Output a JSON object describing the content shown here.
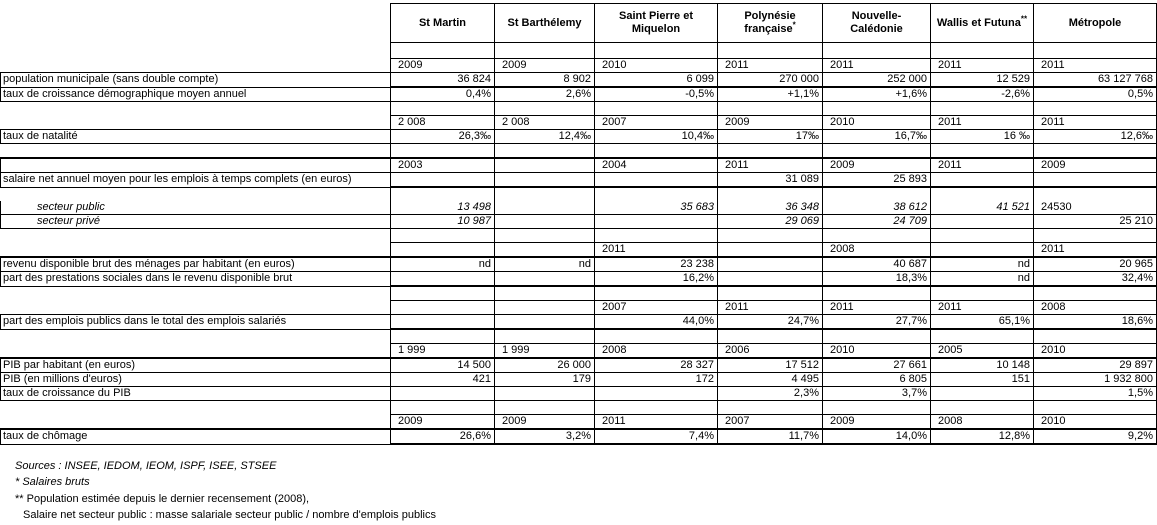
{
  "table": {
    "columns": [
      {
        "label": "St Martin",
        "sup": ""
      },
      {
        "label": "St Barthélemy",
        "sup": ""
      },
      {
        "label": "Saint Pierre et Miquelon",
        "sup": ""
      },
      {
        "label": "Polynésie française",
        "sup": "*"
      },
      {
        "label": "Nouvelle-Calédonie",
        "sup": ""
      },
      {
        "label": "Wallis et Futuna",
        "sup": "**"
      },
      {
        "label": "Métropole",
        "sup": ""
      }
    ],
    "rows": [
      {
        "type": "spacer",
        "cls": "dbb1 sp2",
        "cells": [
          "",
          "",
          "",
          "",
          "",
          "",
          ""
        ]
      },
      {
        "type": "years",
        "cls": "dbb1",
        "cells": [
          "2009",
          "2009",
          "2010",
          "2011",
          "2011",
          "2011",
          "2011"
        ]
      },
      {
        "type": "data",
        "cls": "lbox dbb2 lbb2",
        "label": "population municipale (sans double compte)",
        "cells": [
          "36 824",
          "8 902",
          "6 099",
          "270 000",
          "252 000",
          "12 529",
          "63 127 768"
        ]
      },
      {
        "type": "data",
        "cls": "lbox dbb1 lbb1",
        "label": "taux de croissance démographique moyen annuel",
        "cells": [
          "0,4%",
          "2,6%",
          "-0,5%",
          "+1,1%",
          "+1,6%",
          "-2,6%",
          "0,5%"
        ]
      },
      {
        "type": "spacer",
        "cls": "dbb1",
        "cells": [
          "",
          "",
          "",
          "",
          "",
          "",
          ""
        ]
      },
      {
        "type": "years",
        "cls": "dbb1",
        "cells": [
          "2 008",
          "2 008",
          "2007",
          "2009",
          "2010",
          "2011",
          "2011"
        ]
      },
      {
        "type": "data",
        "cls": "lbox dbb1 lbb1",
        "label": "taux de natalité",
        "cells": [
          "26,3‰",
          "12,4‰",
          "10,4‰",
          "17‰",
          "16,7‰",
          "16 ‰",
          "12,6‰"
        ]
      },
      {
        "type": "spacer",
        "cls": "dbb2 lbb2",
        "cells": [
          "",
          "",
          "",
          "",
          "",
          "",
          ""
        ]
      },
      {
        "type": "years",
        "cls": "dbb1 lbb1 lbl1",
        "cells": [
          "2003",
          "",
          "2004",
          "2011",
          "2009",
          "2011",
          "2009"
        ]
      },
      {
        "type": "data",
        "cls": "lbox dbb2 lbb2",
        "label": "salaire net annuel moyen pour les emplois à temps complets (en euros)",
        "cells": [
          "",
          "",
          "",
          "31 089",
          "25 893",
          "",
          ""
        ]
      },
      {
        "type": "spacer",
        "cls": "",
        "cells": [
          "",
          "",
          "",
          "",
          "",
          "",
          ""
        ]
      },
      {
        "type": "data",
        "cls": "lbox lnt dbb1 lbb1",
        "label": "secteur public",
        "label_italic": true,
        "label_indent": true,
        "cells_italic": true,
        "cells": [
          "13 498",
          "",
          "35 683",
          "36 348",
          "38 612",
          "41 521",
          {
            "v": "24530",
            "italic": false,
            "align": "left"
          }
        ]
      },
      {
        "type": "data",
        "cls": "lbox dbb1 lbb1",
        "label": "secteur privé",
        "label_italic": true,
        "label_indent": true,
        "cells_italic": true,
        "cells": [
          "10 987",
          "",
          "",
          "29 069",
          "24 709",
          "",
          {
            "v": "25 210",
            "italic": false
          }
        ]
      },
      {
        "type": "spacer",
        "cls": "dbb1",
        "cells": [
          "",
          "",
          "",
          "",
          "",
          "",
          ""
        ]
      },
      {
        "type": "years",
        "cls": "dbb2 lbb2",
        "cells": [
          "",
          "",
          "2011",
          "",
          "2008",
          "",
          "2011"
        ]
      },
      {
        "type": "data",
        "cls": "lbox dbb1 lbb1",
        "label": "revenu disponible brut des ménages par habitant (en euros)",
        "cells": [
          "nd",
          "nd",
          "23 238",
          "",
          "40 687",
          "nd",
          "20 965"
        ]
      },
      {
        "type": "data",
        "cls": "lbox dbb2 lbb2",
        "label": "part des prestations sociales dans le revenu disponible brut",
        "cells": [
          "",
          "",
          "16,2%",
          "",
          "18,3%",
          "nd",
          "32,4%"
        ]
      },
      {
        "type": "spacer",
        "cls": "dbb1",
        "cells": [
          "",
          "",
          "",
          "",
          "",
          "",
          ""
        ]
      },
      {
        "type": "years",
        "cls": "dbb1 lbb1",
        "cells": [
          "",
          "",
          "2007",
          "2011",
          "2011",
          "2011",
          "2008"
        ]
      },
      {
        "type": "data",
        "cls": "lbox dbb2 lbb2",
        "label": "part des emplois publics dans le total des emplois salariés",
        "cells": [
          "",
          "",
          "44,0%",
          "24,7%",
          "27,7%",
          "65,1%",
          "18,6%"
        ]
      },
      {
        "type": "spacer",
        "cls": "dbb1",
        "cells": [
          "",
          "",
          "",
          "",
          "",
          "",
          ""
        ]
      },
      {
        "type": "years",
        "cls": "dbb2 lbb2",
        "cells": [
          "1 999",
          "1 999",
          "2008",
          "2006",
          "2010",
          "2005",
          "2010"
        ]
      },
      {
        "type": "data",
        "cls": "lbox dbb1 lbb1",
        "label": "PIB par habitant (en euros)",
        "cells": [
          "14 500",
          "26 000",
          "28 327",
          "17 512",
          "27 661",
          "10 148",
          "29 897"
        ]
      },
      {
        "type": "data",
        "cls": "lbox dbb1 lbb1",
        "label": "PIB (en millions d'euros)",
        "cells": [
          "421",
          "179",
          "172",
          "4 495",
          "6 805",
          "151",
          "1 932 800"
        ]
      },
      {
        "type": "data",
        "cls": "lbox dbb1 lbb1",
        "label": "taux de croissance du PIB",
        "cells": [
          "",
          "",
          "",
          "2,3%",
          "3,7%",
          "",
          "1,5%"
        ]
      },
      {
        "type": "spacer",
        "cls": "dbb1",
        "cells": [
          "",
          "",
          "",
          "",
          "",
          "",
          ""
        ]
      },
      {
        "type": "years",
        "cls": "dbb2 lbb2",
        "cells": [
          "2009",
          "2009",
          "2011",
          "2007",
          "2009",
          "2008",
          "2010"
        ]
      },
      {
        "type": "data",
        "cls": "lbox dbb2 lbb2",
        "label": "taux de chômage",
        "cells": [
          "26,6%",
          "3,2%",
          "7,4%",
          "11,7%",
          "14,0%",
          "12,8%",
          "9,2%"
        ]
      }
    ]
  },
  "footnotes": [
    {
      "text": "Sources : INSEE, IEDOM, IEOM, ISPF, ISEE, STSEE",
      "italic": true,
      "indent": false
    },
    {
      "text": "* Salaires bruts",
      "italic": true,
      "indent": false
    },
    {
      "text": "** Population estimée depuis le dernier recensement (2008),",
      "italic": false,
      "indent": false,
      "gap": true
    },
    {
      "text": "Salaire net secteur public : masse salariale secteur public / nombre d'emplois publics",
      "italic": false,
      "indent": true
    }
  ]
}
